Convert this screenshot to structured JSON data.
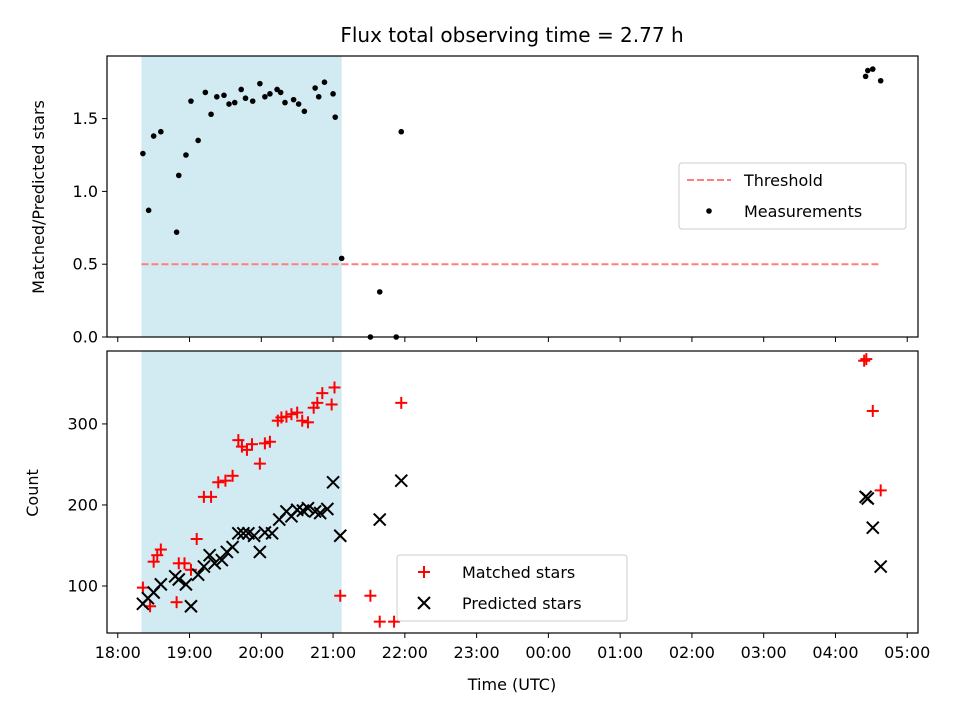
{
  "chart_data": {
    "title": "Flux total observing time = 2.77 h",
    "xlabel": "Time (UTC)",
    "x_ticks": [
      "18:00",
      "19:00",
      "20:00",
      "21:00",
      "22:00",
      "23:00",
      "00:00",
      "01:00",
      "02:00",
      "03:00",
      "04:00",
      "05:00"
    ],
    "xlim_hours": [
      17.85,
      29.15
    ],
    "shaded_interval_hours": [
      18.33,
      21.12
    ],
    "shade_color": "#add8e6",
    "panels": [
      {
        "id": "ratio",
        "type": "scatter",
        "ylabel": "Matched/Predicted stars",
        "ylim": [
          0,
          1.93
        ],
        "y_ticks": [
          0.0,
          0.5,
          1.0,
          1.5
        ],
        "y_tick_labels": [
          "0.0",
          "0.5",
          "1.0",
          "1.5"
        ],
        "legend": {
          "position": "center-right",
          "entries": [
            "Threshold",
            "Measurements"
          ]
        },
        "threshold": {
          "name": "Threshold",
          "value": 0.5,
          "x_range_hours": [
            18.33,
            28.64
          ],
          "color": "#ff7f7f",
          "style": "dashed"
        },
        "series": [
          {
            "name": "Measurements",
            "color": "#000000",
            "marker": "dot",
            "x_hours": [
              18.35,
              18.43,
              18.5,
              18.6,
              18.82,
              18.85,
              18.95,
              19.02,
              19.12,
              19.22,
              19.3,
              19.38,
              19.48,
              19.55,
              19.63,
              19.72,
              19.78,
              19.88,
              19.98,
              20.05,
              20.12,
              20.22,
              20.27,
              20.33,
              20.45,
              20.52,
              20.6,
              20.75,
              20.8,
              20.88,
              21.0,
              21.03,
              21.12,
              21.52,
              21.65,
              21.88,
              21.95,
              28.42,
              28.45,
              28.52,
              28.63
            ],
            "y": [
              1.26,
              0.87,
              1.38,
              1.41,
              0.72,
              1.11,
              1.25,
              1.62,
              1.35,
              1.68,
              1.53,
              1.65,
              1.66,
              1.6,
              1.61,
              1.7,
              1.64,
              1.62,
              1.74,
              1.65,
              1.67,
              1.7,
              1.68,
              1.61,
              1.63,
              1.6,
              1.55,
              1.71,
              1.65,
              1.75,
              1.67,
              1.51,
              0.54,
              0.0,
              0.31,
              0.0,
              1.41,
              1.79,
              1.83,
              1.84,
              1.76
            ]
          }
        ]
      },
      {
        "id": "count",
        "type": "scatter",
        "ylabel": "Count",
        "ylim": [
          42,
          390
        ],
        "y_ticks": [
          100,
          200,
          300
        ],
        "y_tick_labels": [
          "100",
          "200",
          "300"
        ],
        "legend": {
          "position": "lower-center",
          "entries": [
            "Matched stars",
            "Predicted stars"
          ]
        },
        "series": [
          {
            "name": "Matched stars",
            "color": "#ff0000",
            "marker": "plus",
            "x_hours": [
              18.35,
              18.45,
              18.5,
              18.55,
              18.6,
              18.82,
              18.85,
              18.93,
              19.02,
              19.1,
              19.2,
              19.3,
              19.4,
              19.5,
              19.6,
              19.68,
              19.73,
              19.8,
              19.87,
              19.98,
              20.05,
              20.12,
              20.23,
              20.28,
              20.35,
              20.42,
              20.5,
              20.57,
              20.65,
              20.73,
              20.78,
              20.85,
              20.98,
              21.02,
              21.1,
              21.52,
              21.65,
              21.85,
              21.95,
              28.4,
              28.43,
              28.52,
              28.63
            ],
            "y": [
              98,
              75,
              130,
              138,
              145,
              80,
              128,
              128,
              120,
              158,
              210,
              210,
              228,
              230,
              236,
              280,
              272,
              268,
              275,
              251,
              276,
              278,
              304,
              308,
              309,
              312,
              314,
              304,
              302,
              320,
              326,
              338,
              324,
              345,
              88,
              88,
              56,
              56,
              326,
              378,
              380,
              316,
              218
            ]
          },
          {
            "name": "Predicted stars",
            "color": "#000000",
            "marker": "cross",
            "x_hours": [
              18.35,
              18.42,
              18.5,
              18.6,
              18.8,
              18.85,
              18.95,
              19.02,
              19.12,
              19.2,
              19.28,
              19.35,
              19.45,
              19.52,
              19.6,
              19.68,
              19.75,
              19.82,
              19.9,
              19.98,
              20.05,
              20.15,
              20.25,
              20.35,
              20.42,
              20.5,
              20.58,
              20.65,
              20.75,
              20.82,
              20.92,
              21.0,
              21.1,
              21.65,
              21.95,
              28.42,
              28.45,
              28.52,
              28.63
            ],
            "y": [
              78,
              85,
              92,
              102,
              112,
              108,
              102,
              75,
              114,
              124,
              138,
              128,
              132,
              142,
              148,
              165,
              165,
              165,
              162,
              142,
              166,
              165,
              182,
              192,
              186,
              194,
              193,
              196,
              192,
              190,
              195,
              228,
              162,
              182,
              230,
              210,
              208,
              172,
              124
            ]
          }
        ]
      }
    ]
  }
}
